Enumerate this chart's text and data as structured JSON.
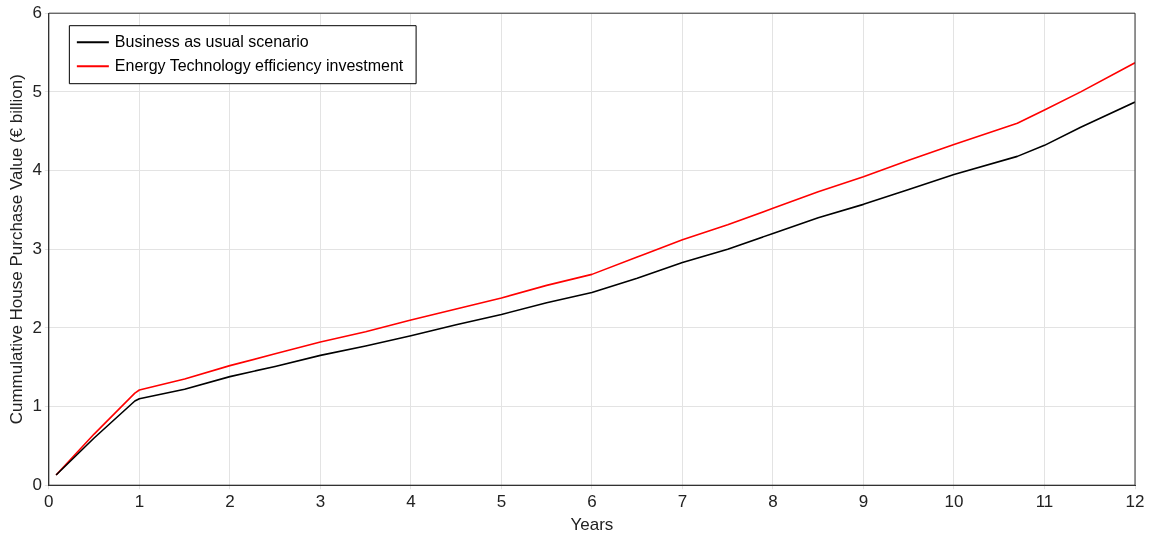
{
  "chart_data": {
    "type": "line",
    "xlabel": "Years",
    "ylabel": "Cummulative House Purchase Value (€ billion)",
    "xlim": [
      0,
      12
    ],
    "xticks": [
      0,
      1,
      2,
      3,
      4,
      5,
      6,
      7,
      8,
      9,
      10,
      11,
      12
    ],
    "ylim": [
      0,
      6
    ],
    "yticks": [
      0,
      1,
      2,
      3,
      4,
      5,
      6
    ],
    "grid": true,
    "legend": "top left",
    "marker": "none",
    "line_style": "solid",
    "series": [
      {
        "name": "Business as usual scenario",
        "color": "#000000",
        "x": [
          0.08,
          0.5,
          0.95,
          1.0,
          1.5,
          2,
          2.5,
          3,
          3.5,
          4,
          4.5,
          5,
          5.5,
          6,
          6.5,
          7,
          7.5,
          8,
          8.5,
          9,
          9.5,
          10,
          10.7,
          11,
          11.4,
          12
        ],
        "values": [
          0.13,
          0.6,
          1.07,
          1.1,
          1.22,
          1.38,
          1.51,
          1.65,
          1.77,
          1.9,
          2.04,
          2.17,
          2.32,
          2.45,
          2.63,
          2.83,
          3.0,
          3.2,
          3.4,
          3.57,
          3.76,
          3.95,
          4.18,
          4.32,
          4.55,
          4.87
        ]
      },
      {
        "name": "Energy Technology efficiency investment",
        "color": "#ff0000",
        "x": [
          0.08,
          0.5,
          0.95,
          1.0,
          1.5,
          2,
          2.5,
          3,
          3.5,
          4,
          4.5,
          5,
          5.5,
          6,
          6.5,
          7,
          7.5,
          8,
          8.5,
          9,
          9.5,
          10,
          10.7,
          11,
          11.4,
          12
        ],
        "values": [
          0.13,
          0.65,
          1.17,
          1.21,
          1.35,
          1.52,
          1.67,
          1.82,
          1.95,
          2.1,
          2.24,
          2.38,
          2.54,
          2.68,
          2.9,
          3.12,
          3.31,
          3.52,
          3.73,
          3.92,
          4.13,
          4.33,
          4.6,
          4.77,
          5.0,
          5.37
        ]
      }
    ]
  }
}
